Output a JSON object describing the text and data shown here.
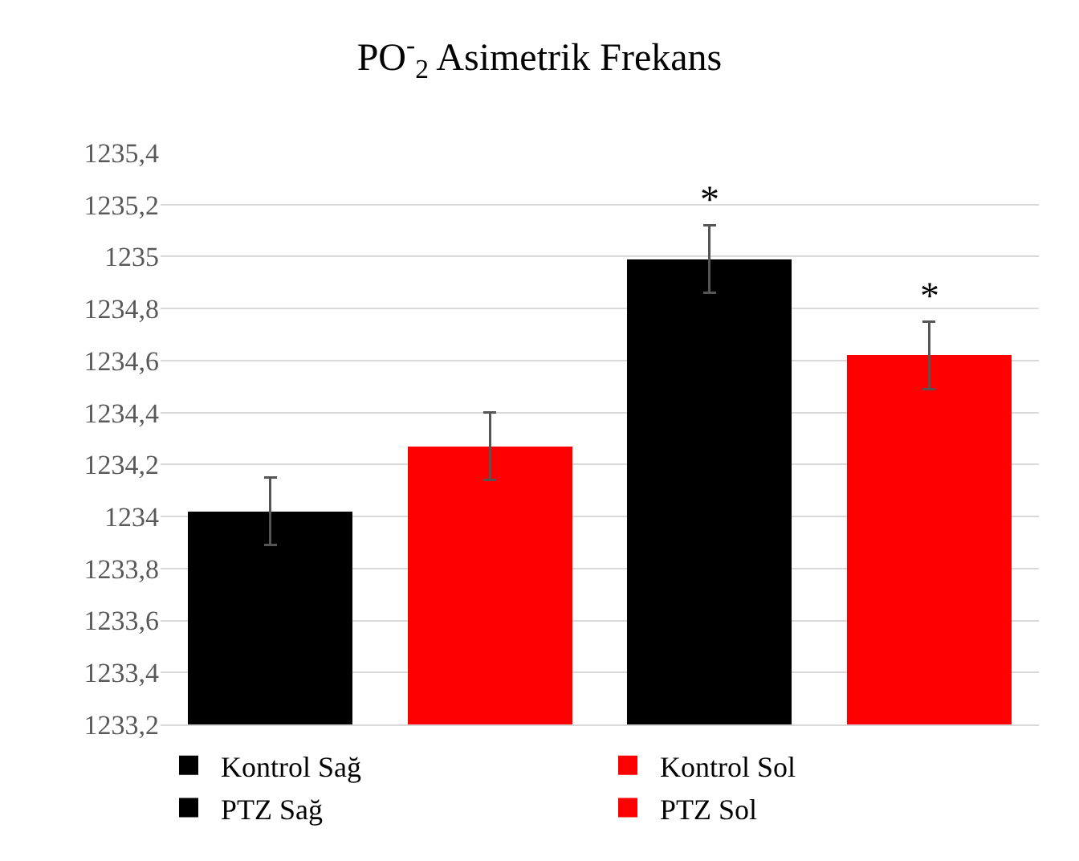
{
  "chart_data": {
    "type": "bar",
    "title": "PO$^{-}$$_{2}$ Asimetrik Frekans",
    "categories": [
      null,
      null,
      null,
      null
    ],
    "stacked": true,
    "series": [
      {
        "name": "Kontrol Sağ",
        "color": "#000000",
        "values": [
          1234.02,
          null,
          null,
          null
        ],
        "errors": [
          0.13,
          null,
          null,
          null
        ]
      },
      {
        "name": "Kontrol Sol",
        "color": "#ff0000",
        "values": [
          null,
          1234.27,
          null,
          null
        ],
        "errors": [
          null,
          0.13,
          null,
          null
        ]
      },
      {
        "name": "PTZ Sağ",
        "color": "#000000",
        "values": [
          null,
          null,
          1234.99,
          null
        ],
        "errors": [
          null,
          null,
          0.13,
          null
        ]
      },
      {
        "name": "PTZ Sol",
        "color": "#ff0000",
        "values": [
          null,
          null,
          null,
          1234.62
        ],
        "errors": [
          null,
          null,
          null,
          0.13
        ]
      }
    ],
    "ylim": [
      1233.2,
      1235.4
    ],
    "yticks": [
      {
        "value": 1233.2,
        "label": "1233,2"
      },
      {
        "value": 1233.4,
        "label": "1233,4"
      },
      {
        "value": 1233.6,
        "label": "1233,6"
      },
      {
        "value": 1233.8,
        "label": "1233,8"
      },
      1234,
      {
        "value": 1234.2,
        "label": "1234,2"
      },
      {
        "value": 1234.4,
        "label": "1234,4"
      },
      {
        "value": 1234.6,
        "label": "1234,6"
      },
      {
        "value": 1234.8,
        "label": "1234,8"
      },
      1235,
      {
        "value": 1235.2,
        "label": "1235,2"
      },
      {
        "value": 1235.4,
        "label": "1235,4"
      }
    ],
    "annotations": [
      "*",
      "*"
    ],
    "grid": "y",
    "legend": "bottom",
    "tick_labels": "y"
  }
}
